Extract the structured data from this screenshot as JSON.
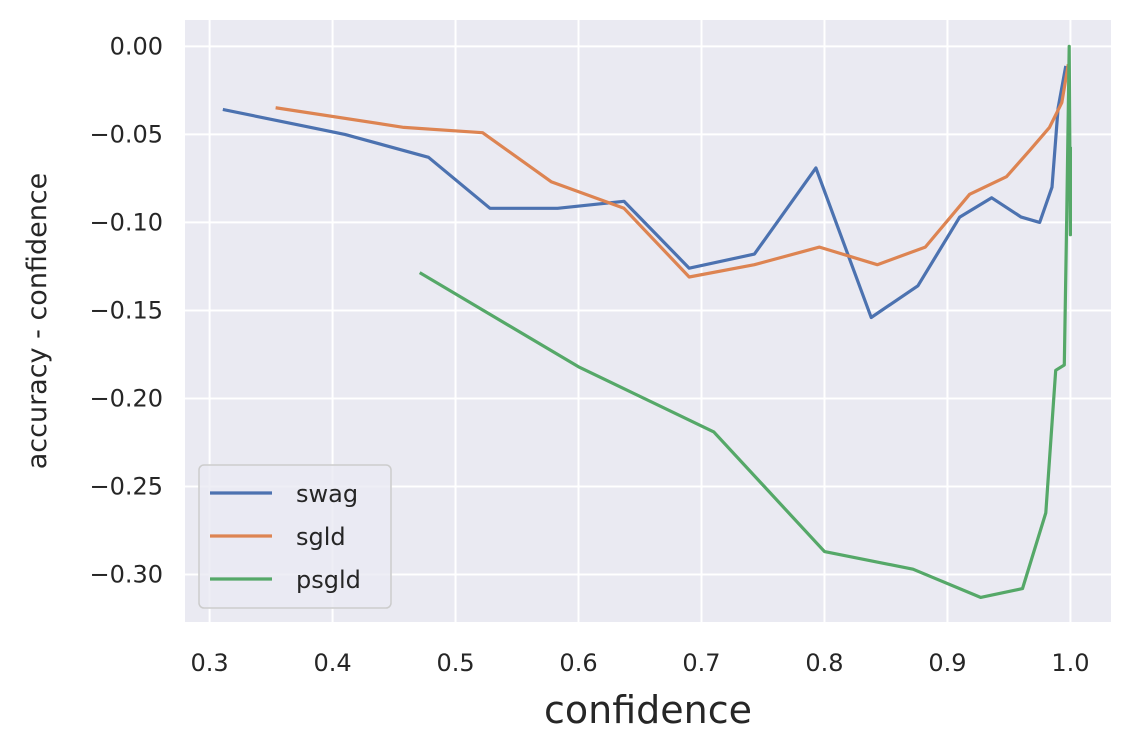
{
  "chart_data": {
    "type": "line",
    "title": "",
    "xlabel": "confidence",
    "ylabel": "accuracy - confidence",
    "xlim": [
      0.28,
      1.033
    ],
    "ylim": [
      -0.327,
      0.015
    ],
    "xticks": [
      0.3,
      0.4,
      0.5,
      0.6,
      0.7,
      0.8,
      0.9,
      1.0
    ],
    "xtick_labels": [
      "0.3",
      "0.4",
      "0.5",
      "0.6",
      "0.7",
      "0.8",
      "0.9",
      "1.0"
    ],
    "yticks": [
      0.0,
      -0.05,
      -0.1,
      -0.15,
      -0.2,
      -0.25,
      -0.3
    ],
    "ytick_labels": [
      "0.00",
      "−0.05",
      "−0.10",
      "−0.15",
      "−0.20",
      "−0.25",
      "−0.30"
    ],
    "grid": true,
    "legend_position": "lower-left",
    "background_color": "#eaeaf2",
    "series": [
      {
        "name": "swag",
        "color": "#4c72b0",
        "points": [
          [
            0.312,
            -0.036
          ],
          [
            0.41,
            -0.05
          ],
          [
            0.478,
            -0.063
          ],
          [
            0.528,
            -0.092
          ],
          [
            0.583,
            -0.092
          ],
          [
            0.637,
            -0.088
          ],
          [
            0.69,
            -0.126
          ],
          [
            0.743,
            -0.118
          ],
          [
            0.793,
            -0.069
          ],
          [
            0.838,
            -0.154
          ],
          [
            0.876,
            -0.136
          ],
          [
            0.91,
            -0.097
          ],
          [
            0.936,
            -0.086
          ],
          [
            0.96,
            -0.097
          ],
          [
            0.975,
            -0.1
          ],
          [
            0.985,
            -0.08
          ],
          [
            0.99,
            -0.035
          ],
          [
            0.996,
            -0.012
          ]
        ]
      },
      {
        "name": "sgld",
        "color": "#dd8452",
        "points": [
          [
            0.355,
            -0.035
          ],
          [
            0.458,
            -0.046
          ],
          [
            0.522,
            -0.049
          ],
          [
            0.578,
            -0.077
          ],
          [
            0.637,
            -0.092
          ],
          [
            0.69,
            -0.131
          ],
          [
            0.743,
            -0.124
          ],
          [
            0.796,
            -0.114
          ],
          [
            0.843,
            -0.124
          ],
          [
            0.882,
            -0.114
          ],
          [
            0.918,
            -0.084
          ],
          [
            0.948,
            -0.074
          ],
          [
            0.967,
            -0.059
          ],
          [
            0.983,
            -0.046
          ],
          [
            0.993,
            -0.032
          ],
          [
            0.998,
            -0.011
          ]
        ]
      },
      {
        "name": "psgld",
        "color": "#55a868",
        "points": [
          [
            0.472,
            -0.129
          ],
          [
            0.6,
            -0.182
          ],
          [
            0.71,
            -0.219
          ],
          [
            0.8,
            -0.287
          ],
          [
            0.872,
            -0.297
          ],
          [
            0.927,
            -0.313
          ],
          [
            0.961,
            -0.308
          ],
          [
            0.98,
            -0.265
          ],
          [
            0.988,
            -0.184
          ],
          [
            0.995,
            -0.181
          ],
          [
            0.997,
            -0.098
          ],
          [
            0.999,
            0.0
          ],
          [
            1.0,
            -0.107
          ],
          [
            1.0,
            -0.058
          ]
        ]
      }
    ]
  }
}
